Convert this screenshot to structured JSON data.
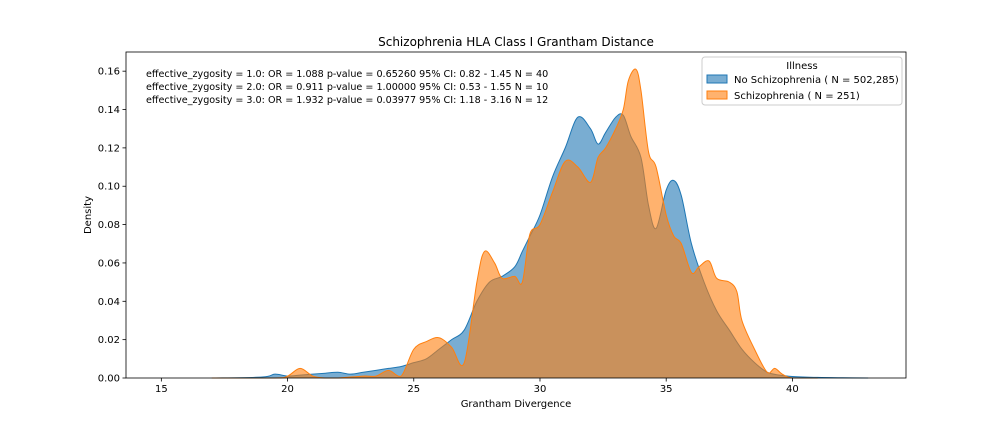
{
  "chart_data": {
    "type": "area",
    "title": "Schizophrenia HLA Class I Grantham Distance",
    "xlabel": "Grantham Divergence",
    "ylabel": "Density",
    "xlim": [
      13.6,
      44.5
    ],
    "ylim": [
      0,
      0.17
    ],
    "xticks": [
      15,
      20,
      25,
      30,
      35,
      40
    ],
    "yticks": [
      0.0,
      0.02,
      0.04,
      0.06,
      0.08,
      0.1,
      0.12,
      0.14,
      0.16
    ],
    "ytick_labels": [
      "0.00",
      "0.02",
      "0.04",
      "0.06",
      "0.08",
      "0.10",
      "0.12",
      "0.14",
      "0.16"
    ],
    "legend": {
      "title": "Illness",
      "location": "top-right",
      "entries": [
        "No Schizophrenia ( N = 502,285)",
        "Schizophrenia ( N = 251)"
      ]
    },
    "annotations": [
      "effective_zygosity = 1.0:  OR = 1.088   p-value = 0.65260   95% CI: 0.82 - 1.45   N = 40",
      "effective_zygosity = 2.0:  OR = 0.911   p-value = 1.00000   95% CI: 0.53 - 1.55   N = 10",
      "effective_zygosity = 3.0:  OR = 1.932   p-value = 0.03977   95% CI: 1.18 - 3.16   N = 12"
    ],
    "series": [
      {
        "name": "No Schizophrenia ( N = 502,285)",
        "color": "#1f77b4",
        "x": [
          17,
          19,
          19.5,
          20,
          20.5,
          21,
          21.5,
          22,
          22.5,
          23,
          23.5,
          24,
          24.5,
          25,
          25.5,
          26,
          26.5,
          27,
          27.5,
          28,
          28.5,
          29,
          29.3,
          29.6,
          30,
          30.5,
          31,
          31.5,
          32,
          32.3,
          32.6,
          33,
          33.3,
          33.6,
          34,
          34.3,
          34.6,
          35,
          35.3,
          35.6,
          36,
          36.5,
          37,
          37.5,
          38,
          38.5,
          39,
          39.5,
          40,
          41,
          42,
          43
        ],
        "y": [
          0,
          0.0005,
          0.002,
          0.001,
          0.0015,
          0.002,
          0.0025,
          0.003,
          0.002,
          0.003,
          0.004,
          0.005,
          0.006,
          0.008,
          0.01,
          0.015,
          0.02,
          0.025,
          0.04,
          0.05,
          0.053,
          0.058,
          0.066,
          0.074,
          0.085,
          0.105,
          0.12,
          0.136,
          0.13,
          0.122,
          0.128,
          0.136,
          0.137,
          0.126,
          0.115,
          0.09,
          0.078,
          0.098,
          0.103,
          0.095,
          0.07,
          0.05,
          0.035,
          0.025,
          0.015,
          0.008,
          0.003,
          0.0015,
          0.0008,
          0.0003,
          0.0001,
          0
        ]
      },
      {
        "name": "Schizophrenia ( N = 251)",
        "color": "#ff7f0e",
        "x": [
          17,
          19.5,
          20,
          20.5,
          21,
          21.5,
          22,
          23,
          23.5,
          24,
          24.5,
          25,
          25.5,
          26,
          26.5,
          27,
          27.5,
          27.8,
          28.2,
          28.5,
          29,
          29.3,
          29.6,
          30,
          30.5,
          31,
          31.5,
          32,
          32.3,
          32.6,
          33,
          33.3,
          33.5,
          33.8,
          34,
          34.3,
          34.6,
          35,
          35.3,
          35.6,
          36,
          36.3,
          36.7,
          37,
          37.5,
          37.8,
          38,
          38.5,
          39,
          39.3,
          39.6,
          40,
          41
        ],
        "y": [
          0,
          0,
          0.001,
          0.005,
          0.001,
          0,
          0,
          0.001,
          0.001,
          0.004,
          0.001,
          0.015,
          0.019,
          0.021,
          0.016,
          0.008,
          0.05,
          0.066,
          0.06,
          0.052,
          0.053,
          0.05,
          0.075,
          0.08,
          0.097,
          0.113,
          0.11,
          0.102,
          0.115,
          0.12,
          0.13,
          0.14,
          0.155,
          0.161,
          0.15,
          0.118,
          0.11,
          0.085,
          0.074,
          0.07,
          0.055,
          0.058,
          0.061,
          0.052,
          0.05,
          0.045,
          0.03,
          0.015,
          0.003,
          0.005,
          0.002,
          0,
          0
        ]
      }
    ]
  }
}
